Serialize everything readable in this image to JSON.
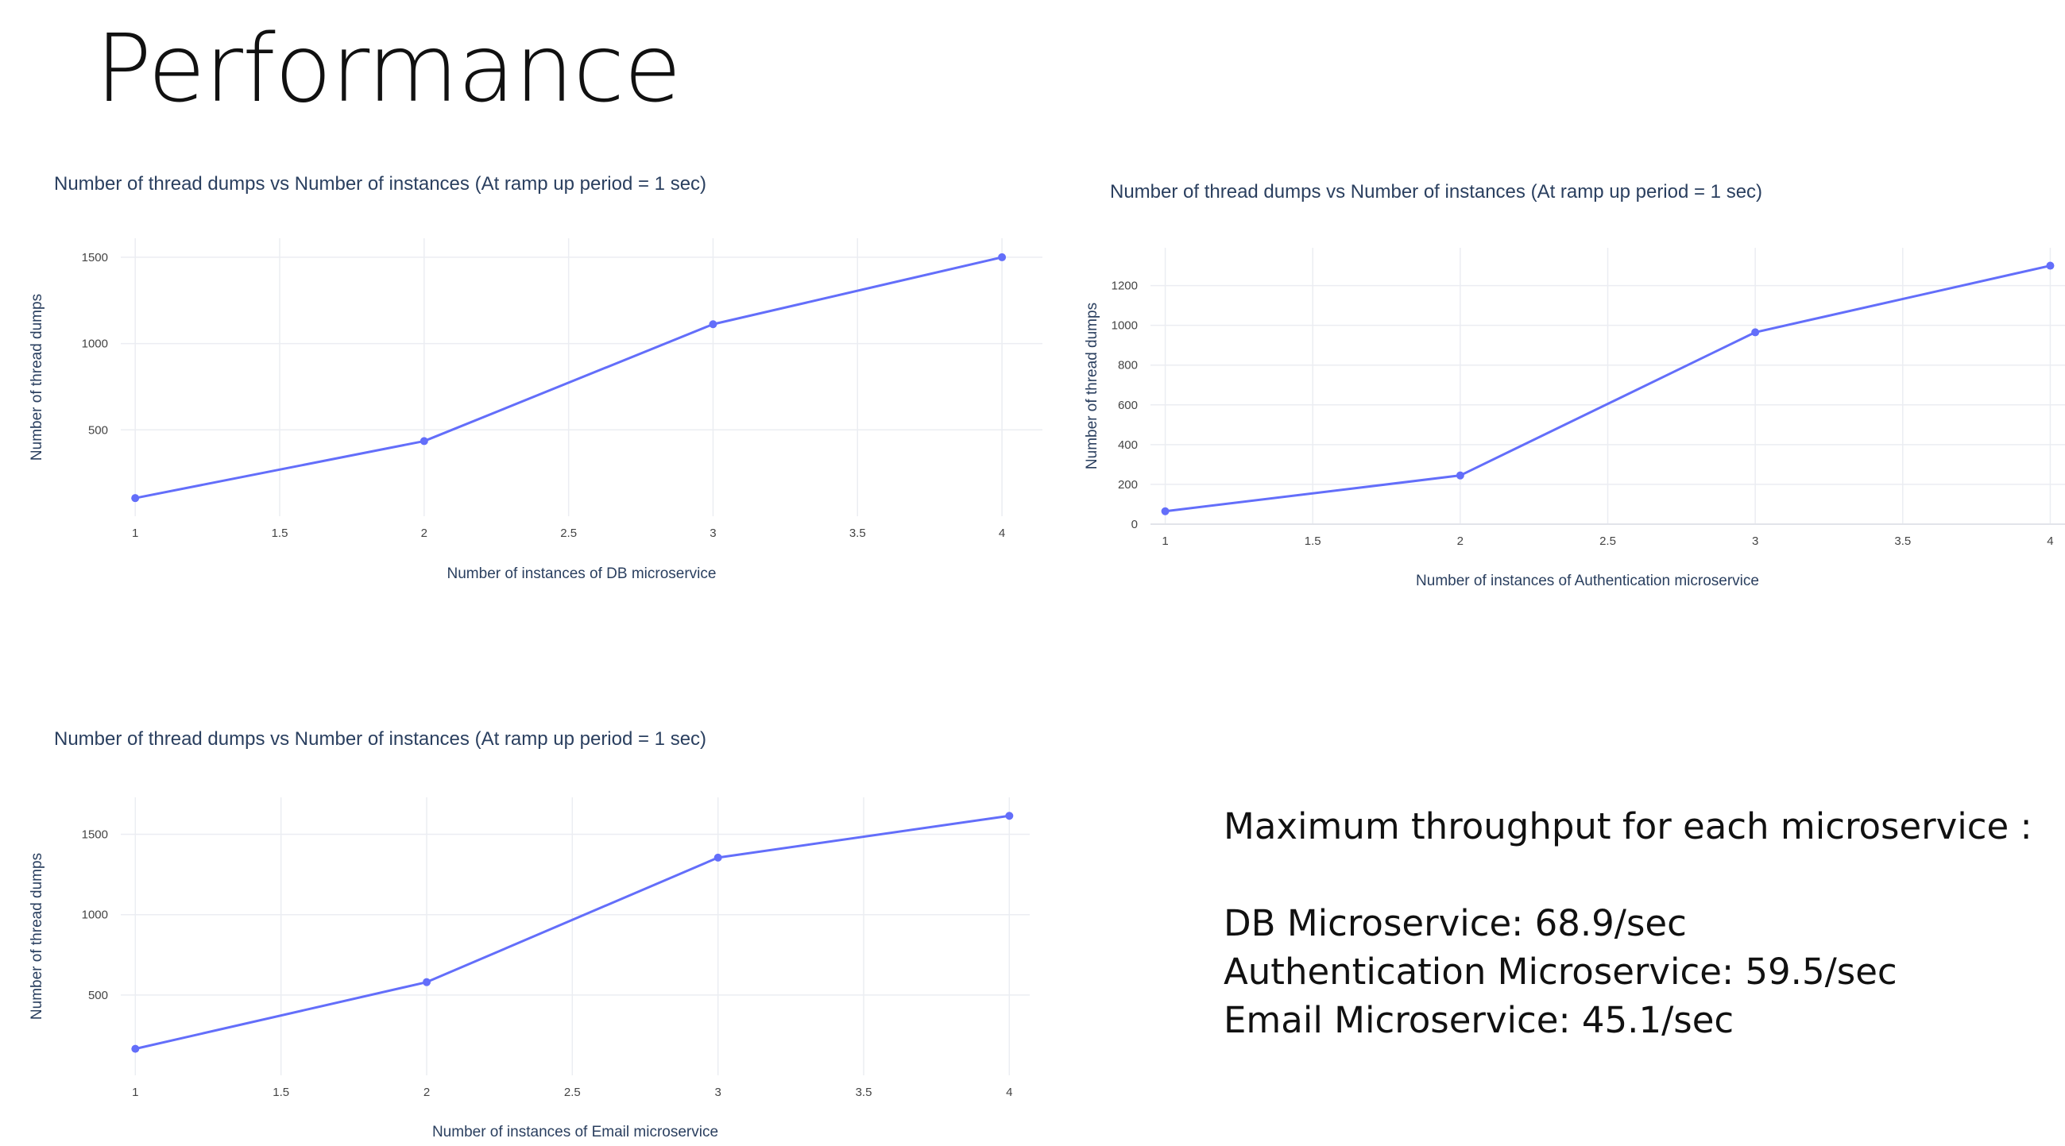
{
  "slide": {
    "title": "Performance"
  },
  "summary": {
    "heading": "Maximum throughput for each microservice :",
    "items": [
      "DB Microservice: 68.9/sec",
      "Authentication Microservice: 59.5/sec",
      "Email Microservice: 45.1/sec"
    ]
  },
  "colors": {
    "series": "#636efa"
  },
  "chart_data": [
    {
      "type": "line",
      "title": "Number of thread dumps vs Number of instances (At ramp up period = 1 sec)",
      "xlabel": "Number of instances of DB microservice",
      "ylabel": "Number of thread dumps",
      "x": [
        1,
        2,
        3,
        4
      ],
      "series": [
        {
          "values": [
            105,
            435,
            1112,
            1500
          ]
        }
      ],
      "xlim": [
        0.95,
        4.14
      ],
      "ylim": [
        0,
        1610
      ],
      "xticks": [
        1,
        1.5,
        2,
        2.5,
        3,
        3.5,
        4
      ],
      "xtick_labels": [
        "1",
        "1.5",
        "2",
        "2.5",
        "3",
        "3.5",
        "4"
      ],
      "yticks": [
        500,
        1000,
        1500
      ],
      "ytick_labels": [
        "500",
        "1000",
        "1500"
      ],
      "grid": true,
      "markers": true
    },
    {
      "type": "line",
      "title": "Number of thread dumps vs Number of instances (At ramp up period = 1 sec)",
      "xlabel": "Number of instances of Authentication microservice",
      "ylabel": "Number of thread dumps",
      "x": [
        1,
        2,
        3,
        4
      ],
      "series": [
        {
          "values": [
            65,
            245,
            965,
            1300
          ]
        }
      ],
      "xlim": [
        0.95,
        4.05
      ],
      "ylim": [
        0,
        1390
      ],
      "xticks": [
        1,
        1.5,
        2,
        2.5,
        3,
        3.5,
        4
      ],
      "xtick_labels": [
        "1",
        "1.5",
        "2",
        "2.5",
        "3",
        "3.5",
        "4"
      ],
      "yticks": [
        0,
        200,
        400,
        600,
        800,
        1000,
        1200
      ],
      "ytick_labels": [
        "0",
        "200",
        "400",
        "600",
        "800",
        "1000",
        "1200"
      ],
      "grid": true,
      "markers": true
    },
    {
      "type": "line",
      "title": "Number of thread dumps vs Number of instances (At ramp up period = 1 sec)",
      "xlabel": "Number of instances of Email microservice",
      "ylabel": "Number of thread dumps",
      "x": [
        1,
        2,
        3,
        4
      ],
      "series": [
        {
          "values": [
            165,
            580,
            1355,
            1615
          ]
        }
      ],
      "xlim": [
        0.95,
        4.07
      ],
      "ylim": [
        0,
        1730
      ],
      "xticks": [
        1,
        1.5,
        2,
        2.5,
        3,
        3.5,
        4
      ],
      "xtick_labels": [
        "1",
        "1.5",
        "2",
        "2.5",
        "3",
        "3.5",
        "4"
      ],
      "yticks": [
        500,
        1000,
        1500
      ],
      "ytick_labels": [
        "500",
        "1000",
        "1500"
      ],
      "grid": true,
      "markers": true
    }
  ]
}
